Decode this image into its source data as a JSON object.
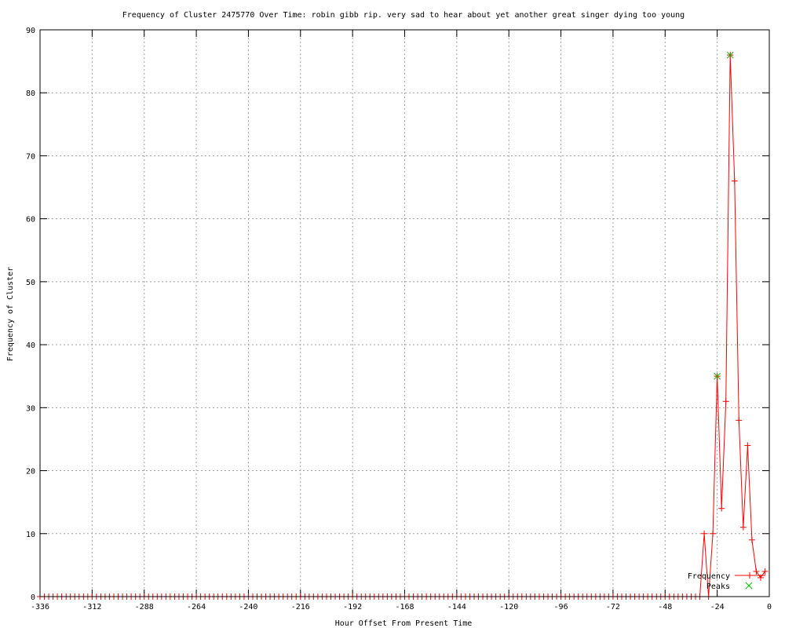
{
  "chart_data": {
    "type": "line",
    "title": "Frequency of Cluster 2475770 Over Time: robin gibb rip. very sad to hear about yet another great singer dying too young",
    "xlabel": "Hour Offset From Present Time",
    "ylabel": "Frequency of Cluster",
    "xlim": [
      -336,
      0
    ],
    "ylim": [
      0,
      90
    ],
    "xticks": [
      -336,
      -312,
      -288,
      -264,
      -240,
      -216,
      -192,
      -168,
      -144,
      -120,
      -96,
      -72,
      -48,
      -24,
      0
    ],
    "yticks": [
      0,
      10,
      20,
      30,
      40,
      50,
      60,
      70,
      80,
      90
    ],
    "grid": true,
    "legend_position": "bottom-right",
    "series": [
      {
        "name": "Frequency",
        "color": "#ff0000",
        "x": [
          -336,
          -334,
          -332,
          -330,
          -328,
          -326,
          -324,
          -322,
          -320,
          -318,
          -316,
          -314,
          -312,
          -310,
          -308,
          -306,
          -304,
          -302,
          -300,
          -298,
          -296,
          -294,
          -292,
          -290,
          -288,
          -286,
          -284,
          -282,
          -280,
          -278,
          -276,
          -274,
          -272,
          -270,
          -268,
          -266,
          -264,
          -262,
          -260,
          -258,
          -256,
          -254,
          -252,
          -250,
          -248,
          -246,
          -244,
          -242,
          -240,
          -238,
          -236,
          -234,
          -232,
          -230,
          -228,
          -226,
          -224,
          -222,
          -220,
          -218,
          -216,
          -214,
          -212,
          -210,
          -208,
          -206,
          -204,
          -202,
          -200,
          -198,
          -196,
          -194,
          -192,
          -190,
          -188,
          -186,
          -184,
          -182,
          -180,
          -178,
          -176,
          -174,
          -172,
          -170,
          -168,
          -166,
          -164,
          -162,
          -160,
          -158,
          -156,
          -154,
          -152,
          -150,
          -148,
          -146,
          -144,
          -142,
          -140,
          -138,
          -136,
          -134,
          -132,
          -130,
          -128,
          -126,
          -124,
          -122,
          -120,
          -118,
          -116,
          -114,
          -112,
          -110,
          -108,
          -106,
          -104,
          -102,
          -100,
          -98,
          -96,
          -94,
          -92,
          -90,
          -88,
          -86,
          -84,
          -82,
          -80,
          -78,
          -76,
          -74,
          -72,
          -70,
          -68,
          -66,
          -64,
          -62,
          -60,
          -58,
          -56,
          -54,
          -52,
          -50,
          -48,
          -46,
          -44,
          -42,
          -40,
          -38,
          -36,
          -34,
          -32,
          -30,
          -28,
          -26,
          -24,
          -22,
          -20,
          -18,
          -16,
          -14,
          -12,
          -10,
          -8,
          -6,
          -4,
          -2
        ],
        "y": [
          0,
          0,
          0,
          0,
          0,
          0,
          0,
          0,
          0,
          0,
          0,
          0,
          0,
          0,
          0,
          0,
          0,
          0,
          0,
          0,
          0,
          0,
          0,
          0,
          0,
          0,
          0,
          0,
          0,
          0,
          0,
          0,
          0,
          0,
          0,
          0,
          0,
          0,
          0,
          0,
          0,
          0,
          0,
          0,
          0,
          0,
          0,
          0,
          0,
          0,
          0,
          0,
          0,
          0,
          0,
          0,
          0,
          0,
          0,
          0,
          0,
          0,
          0,
          0,
          0,
          0,
          0,
          0,
          0,
          0,
          0,
          0,
          0,
          0,
          0,
          0,
          0,
          0,
          0,
          0,
          0,
          0,
          0,
          0,
          0,
          0,
          0,
          0,
          0,
          0,
          0,
          0,
          0,
          0,
          0,
          0,
          0,
          0,
          0,
          0,
          0,
          0,
          0,
          0,
          0,
          0,
          0,
          0,
          0,
          0,
          0,
          0,
          0,
          0,
          0,
          0,
          0,
          0,
          0,
          0,
          0,
          0,
          0,
          0,
          0,
          0,
          0,
          0,
          0,
          0,
          0,
          0,
          0,
          0,
          0,
          0,
          0,
          0,
          0,
          0,
          0,
          0,
          0,
          0,
          0,
          0,
          0,
          0,
          0,
          0,
          0,
          0,
          0,
          10,
          0,
          10,
          35,
          14,
          31,
          86,
          66,
          28,
          11,
          24,
          9,
          4,
          3,
          4
        ]
      },
      {
        "name": "Peaks",
        "color": "#00c000",
        "x": [
          -24,
          -18
        ],
        "y": [
          35,
          86
        ]
      }
    ]
  }
}
